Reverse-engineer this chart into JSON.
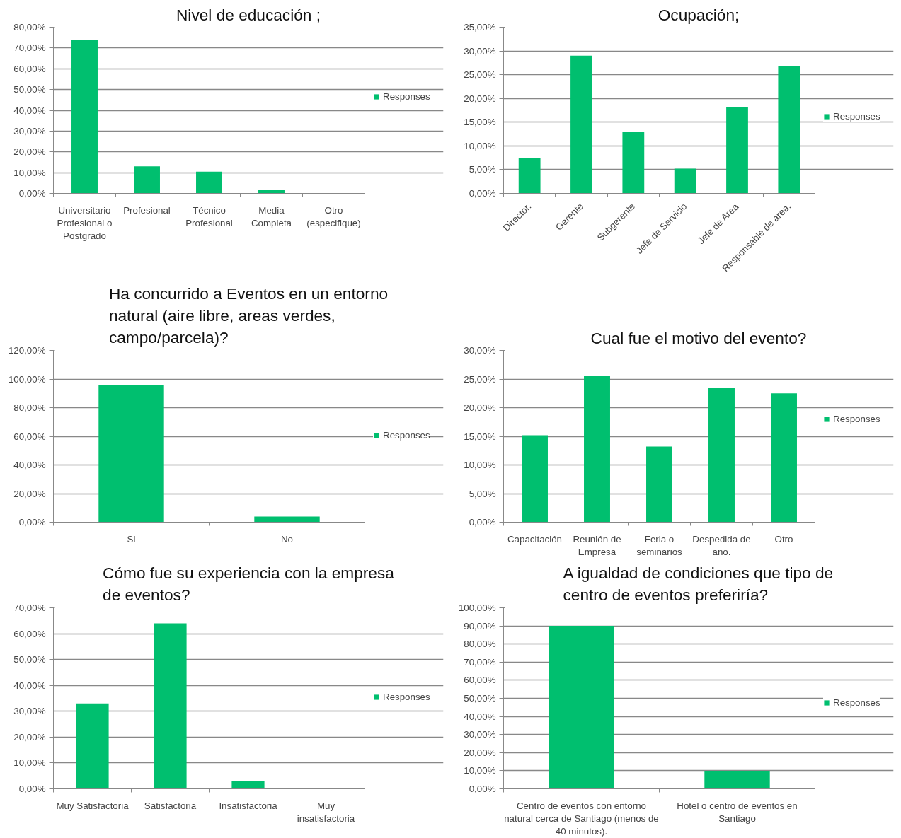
{
  "chart_data": [
    {
      "type": "bar",
      "title": "Nivel de educación ;",
      "categories": [
        "Universitario\nProfesional o\nPostgrado",
        "Profesional",
        "Técnico\nProfesional",
        "Media\nCompleta",
        "Otro\n(especifique)"
      ],
      "series": [
        {
          "name": "Responses",
          "color": "#00bf6f",
          "values": [
            74,
            13,
            10.5,
            1.7,
            0
          ]
        }
      ],
      "ylim": [
        0,
        80
      ],
      "yticks": [
        {
          "value": 0,
          "label": "0,00%"
        },
        {
          "value": 10,
          "label": "10,00%"
        },
        {
          "value": 20,
          "label": "20,00%"
        },
        {
          "value": 30,
          "label": "30,00%"
        },
        {
          "value": 40,
          "label": "40,00%"
        },
        {
          "value": 50,
          "label": "50,00%"
        },
        {
          "value": 60,
          "label": "60,00%"
        },
        {
          "value": 70,
          "label": "70,00%"
        },
        {
          "value": 80,
          "label": "80,00%"
        }
      ],
      "grid": "y",
      "legend": "right"
    },
    {
      "type": "bar",
      "title": "Ocupación;",
      "categories": [
        "Director.",
        "Gerente",
        "Subgerente",
        "Jefe de Servicio",
        "Jefe de Area",
        "Responsable de area."
      ],
      "series": [
        {
          "name": "Responses",
          "color": "#00bf6f",
          "values": [
            7.5,
            29,
            13,
            5.2,
            18.2,
            26.8
          ]
        }
      ],
      "ylim": [
        0,
        35
      ],
      "yticks": [
        {
          "value": 0,
          "label": "0,00%"
        },
        {
          "value": 5,
          "label": "5,00%"
        },
        {
          "value": 10,
          "label": "10,00%"
        },
        {
          "value": 15,
          "label": "15,00%"
        },
        {
          "value": 20,
          "label": "20,00%"
        },
        {
          "value": 25,
          "label": "25,00%"
        },
        {
          "value": 30,
          "label": "30,00%"
        },
        {
          "value": 35,
          "label": "35,00%"
        }
      ],
      "grid": "y",
      "legend": "right"
    },
    {
      "type": "bar",
      "title": "Ha concurrido a Eventos en un entorno\nnatural (aire libre, areas verdes,\ncampo/parcela)?",
      "categories": [
        "Si",
        "No"
      ],
      "series": [
        {
          "name": "Responses",
          "color": "#00bf6f",
          "values": [
            96,
            4
          ]
        }
      ],
      "ylim": [
        0,
        120
      ],
      "yticks": [
        {
          "value": 0,
          "label": "0,00%"
        },
        {
          "value": 20,
          "label": "20,00%"
        },
        {
          "value": 40,
          "label": "40,00%"
        },
        {
          "value": 60,
          "label": "60,00%"
        },
        {
          "value": 80,
          "label": "80,00%"
        },
        {
          "value": 100,
          "label": "100,00%"
        },
        {
          "value": 120,
          "label": "120,00%"
        }
      ],
      "grid": "y",
      "legend": "right"
    },
    {
      "type": "bar",
      "title": "Cual fue el motivo del evento?",
      "categories": [
        "Capacitación",
        "Reunión de\nEmpresa",
        "Feria o\nseminarios",
        "Despedida de\naño.",
        "Otro"
      ],
      "series": [
        {
          "name": "Responses",
          "color": "#00bf6f",
          "values": [
            15.2,
            25.5,
            13.2,
            23.5,
            22.5
          ]
        }
      ],
      "ylim": [
        0,
        30
      ],
      "yticks": [
        {
          "value": 0,
          "label": "0,00%"
        },
        {
          "value": 5,
          "label": "5,00%"
        },
        {
          "value": 10,
          "label": "10,00%"
        },
        {
          "value": 15,
          "label": "15,00%"
        },
        {
          "value": 20,
          "label": "20,00%"
        },
        {
          "value": 25,
          "label": "25,00%"
        },
        {
          "value": 30,
          "label": "30,00%"
        }
      ],
      "grid": "y",
      "legend": "right"
    },
    {
      "type": "bar",
      "title": "Cómo fue su experiencia con la empresa\nde eventos?",
      "categories": [
        "Muy Satisfactoria",
        "Satisfactoria",
        "Insatisfactoria",
        "Muy\ninsatisfactoria"
      ],
      "series": [
        {
          "name": "Responses",
          "color": "#00bf6f",
          "values": [
            33,
            64,
            3,
            0
          ]
        }
      ],
      "ylim": [
        0,
        70
      ],
      "yticks": [
        {
          "value": 0,
          "label": "0,00%"
        },
        {
          "value": 10,
          "label": "10,00%"
        },
        {
          "value": 20,
          "label": "20,00%"
        },
        {
          "value": 30,
          "label": "30,00%"
        },
        {
          "value": 40,
          "label": "40,00%"
        },
        {
          "value": 50,
          "label": "50,00%"
        },
        {
          "value": 60,
          "label": "60,00%"
        },
        {
          "value": 70,
          "label": "70,00%"
        }
      ],
      "grid": "y",
      "legend": "right"
    },
    {
      "type": "bar",
      "title": "A igualdad de condiciones que tipo de\ncentro de eventos preferiría?",
      "categories": [
        "Centro de eventos con entorno\nnatural cerca de Santiago (menos de\n40 minutos).",
        "Hotel o centro de eventos en\nSantiago"
      ],
      "series": [
        {
          "name": "Responses",
          "color": "#00bf6f",
          "values": [
            90,
            10
          ]
        }
      ],
      "ylim": [
        0,
        100
      ],
      "yticks": [
        {
          "value": 0,
          "label": "0,00%"
        },
        {
          "value": 10,
          "label": "10,00%"
        },
        {
          "value": 20,
          "label": "20,00%"
        },
        {
          "value": 30,
          "label": "30,00%"
        },
        {
          "value": 40,
          "label": "40,00%"
        },
        {
          "value": 50,
          "label": "50,00%"
        },
        {
          "value": 60,
          "label": "60,00%"
        },
        {
          "value": 70,
          "label": "70,00%"
        },
        {
          "value": 80,
          "label": "80,00%"
        },
        {
          "value": 90,
          "label": "90,00%"
        },
        {
          "value": 100,
          "label": "100,00%"
        }
      ],
      "grid": "y",
      "legend": "right"
    }
  ]
}
